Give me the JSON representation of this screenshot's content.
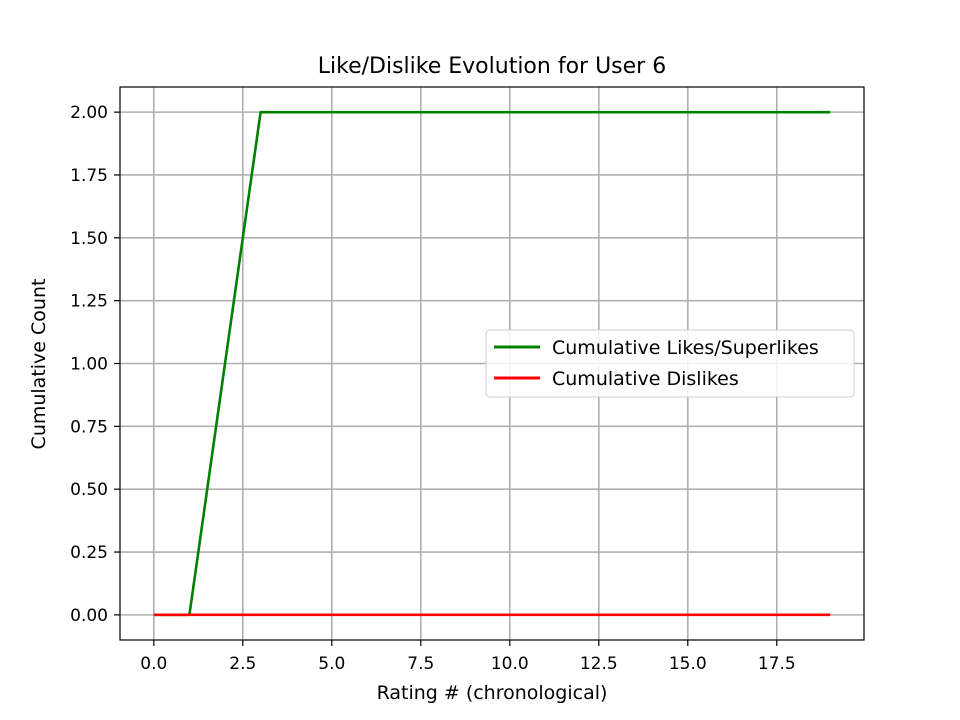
{
  "chart_data": {
    "type": "line",
    "title": "Like/Dislike Evolution for User 6",
    "xlabel": "Rating # (chronological)",
    "ylabel": "Cumulative Count",
    "xlim": [
      -0.95,
      19.95
    ],
    "ylim": [
      -0.1,
      2.1
    ],
    "xticks": [
      0,
      2.5,
      5,
      7.5,
      10,
      12.5,
      15,
      17.5
    ],
    "xtick_labels": [
      "0.0",
      "2.5",
      "5.0",
      "7.5",
      "10.0",
      "12.5",
      "15.0",
      "17.5"
    ],
    "yticks": [
      0,
      0.25,
      0.5,
      0.75,
      1.0,
      1.25,
      1.5,
      1.75,
      2.0
    ],
    "ytick_labels": [
      "0.00",
      "0.25",
      "0.50",
      "0.75",
      "1.00",
      "1.25",
      "1.50",
      "1.75",
      "2.00"
    ],
    "grid": true,
    "legend_position": "center-right",
    "x": [
      0,
      1,
      2,
      3,
      4,
      5,
      6,
      7,
      8,
      9,
      10,
      11,
      12,
      13,
      14,
      15,
      16,
      17,
      18,
      19
    ],
    "series": [
      {
        "name": "Cumulative Likes/Superlikes",
        "color": "#008000",
        "values": [
          0,
          0,
          1,
          2,
          2,
          2,
          2,
          2,
          2,
          2,
          2,
          2,
          2,
          2,
          2,
          2,
          2,
          2,
          2,
          2
        ]
      },
      {
        "name": "Cumulative Dislikes",
        "color": "#ff0000",
        "values": [
          0,
          0,
          0,
          0,
          0,
          0,
          0,
          0,
          0,
          0,
          0,
          0,
          0,
          0,
          0,
          0,
          0,
          0,
          0,
          0
        ]
      }
    ]
  }
}
